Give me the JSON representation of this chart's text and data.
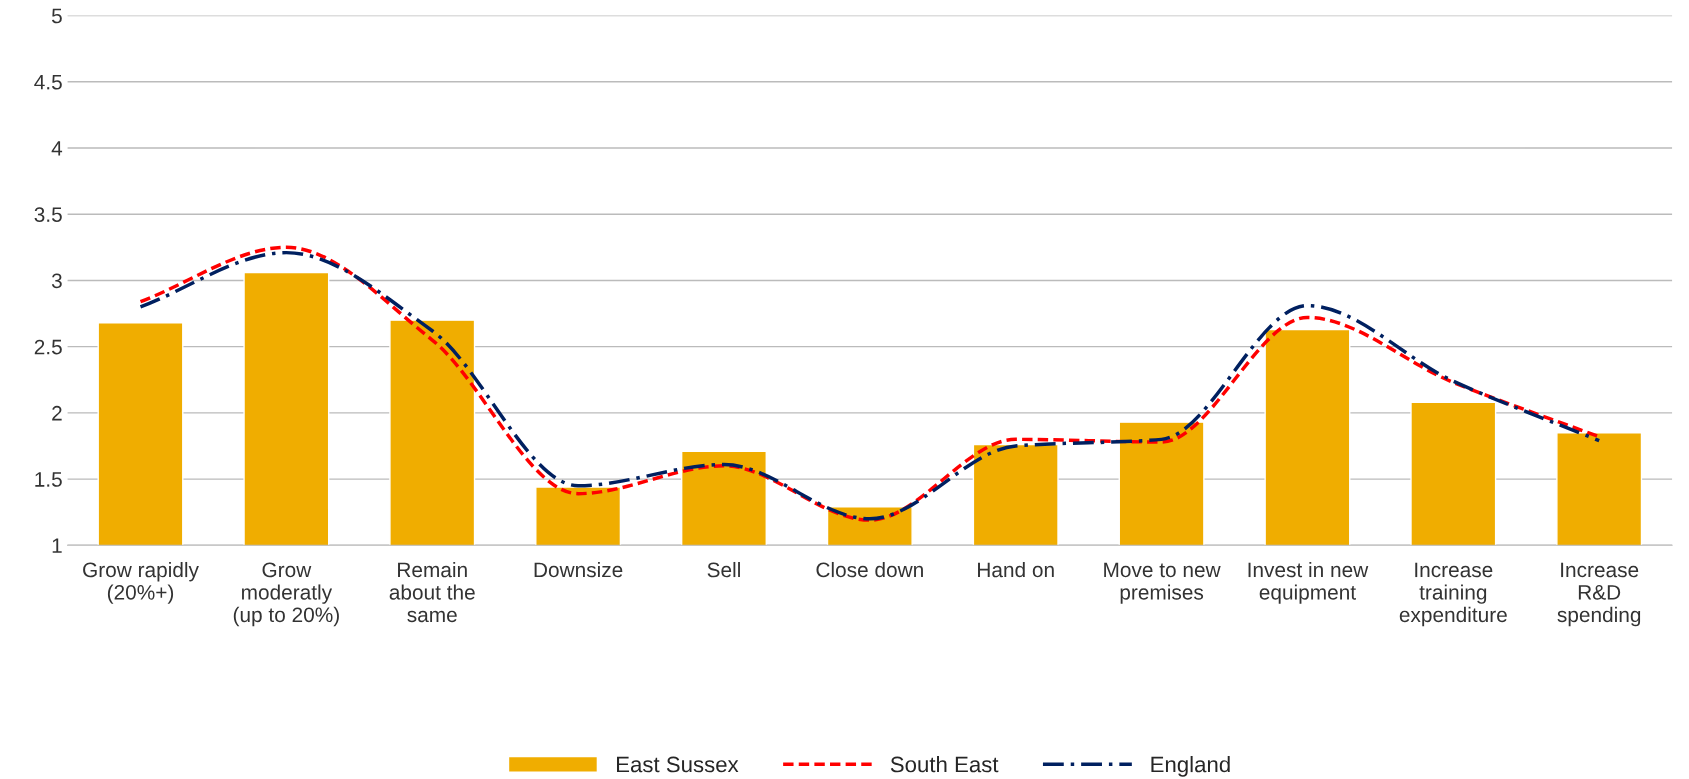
{
  "chart_data": {
    "type": "bar",
    "categories": [
      "Grow rapidly\n(20%+)",
      "Grow\nmoderatly\n(up to 20%)",
      "Remain\nabout the\nsame",
      "Downsize",
      "Sell",
      "Close down",
      "Hand on",
      "Move to new\npremises",
      "Invest in new\nequipment",
      "Increase\ntraining\nexpenditure",
      "Increase\nR&D\nspending"
    ],
    "series": [
      {
        "name": "East Sussex",
        "color": "#f0ad00",
        "values": [
          2.68,
          3.06,
          2.7,
          1.44,
          1.71,
          1.29,
          1.76,
          1.93,
          2.63,
          2.08,
          1.85
        ]
      },
      {
        "name": "South East",
        "type": "line",
        "line_style": "dashed",
        "color": "#ff0000",
        "values": [
          2.84,
          3.25,
          2.55,
          1.39,
          1.6,
          1.19,
          1.8,
          1.78,
          2.72,
          2.23,
          1.82
        ]
      },
      {
        "name": "England",
        "type": "line",
        "line_style": "dashdot",
        "color": "#002060",
        "values": [
          2.8,
          3.21,
          2.62,
          1.45,
          1.61,
          1.2,
          1.75,
          1.8,
          2.81,
          2.24,
          1.79
        ]
      }
    ],
    "ylim": [
      1,
      5
    ],
    "yticks": [
      1,
      1.5,
      2,
      2.5,
      3,
      3.5,
      4,
      4.5,
      5
    ],
    "grid": "y",
    "legend": "bottom"
  }
}
